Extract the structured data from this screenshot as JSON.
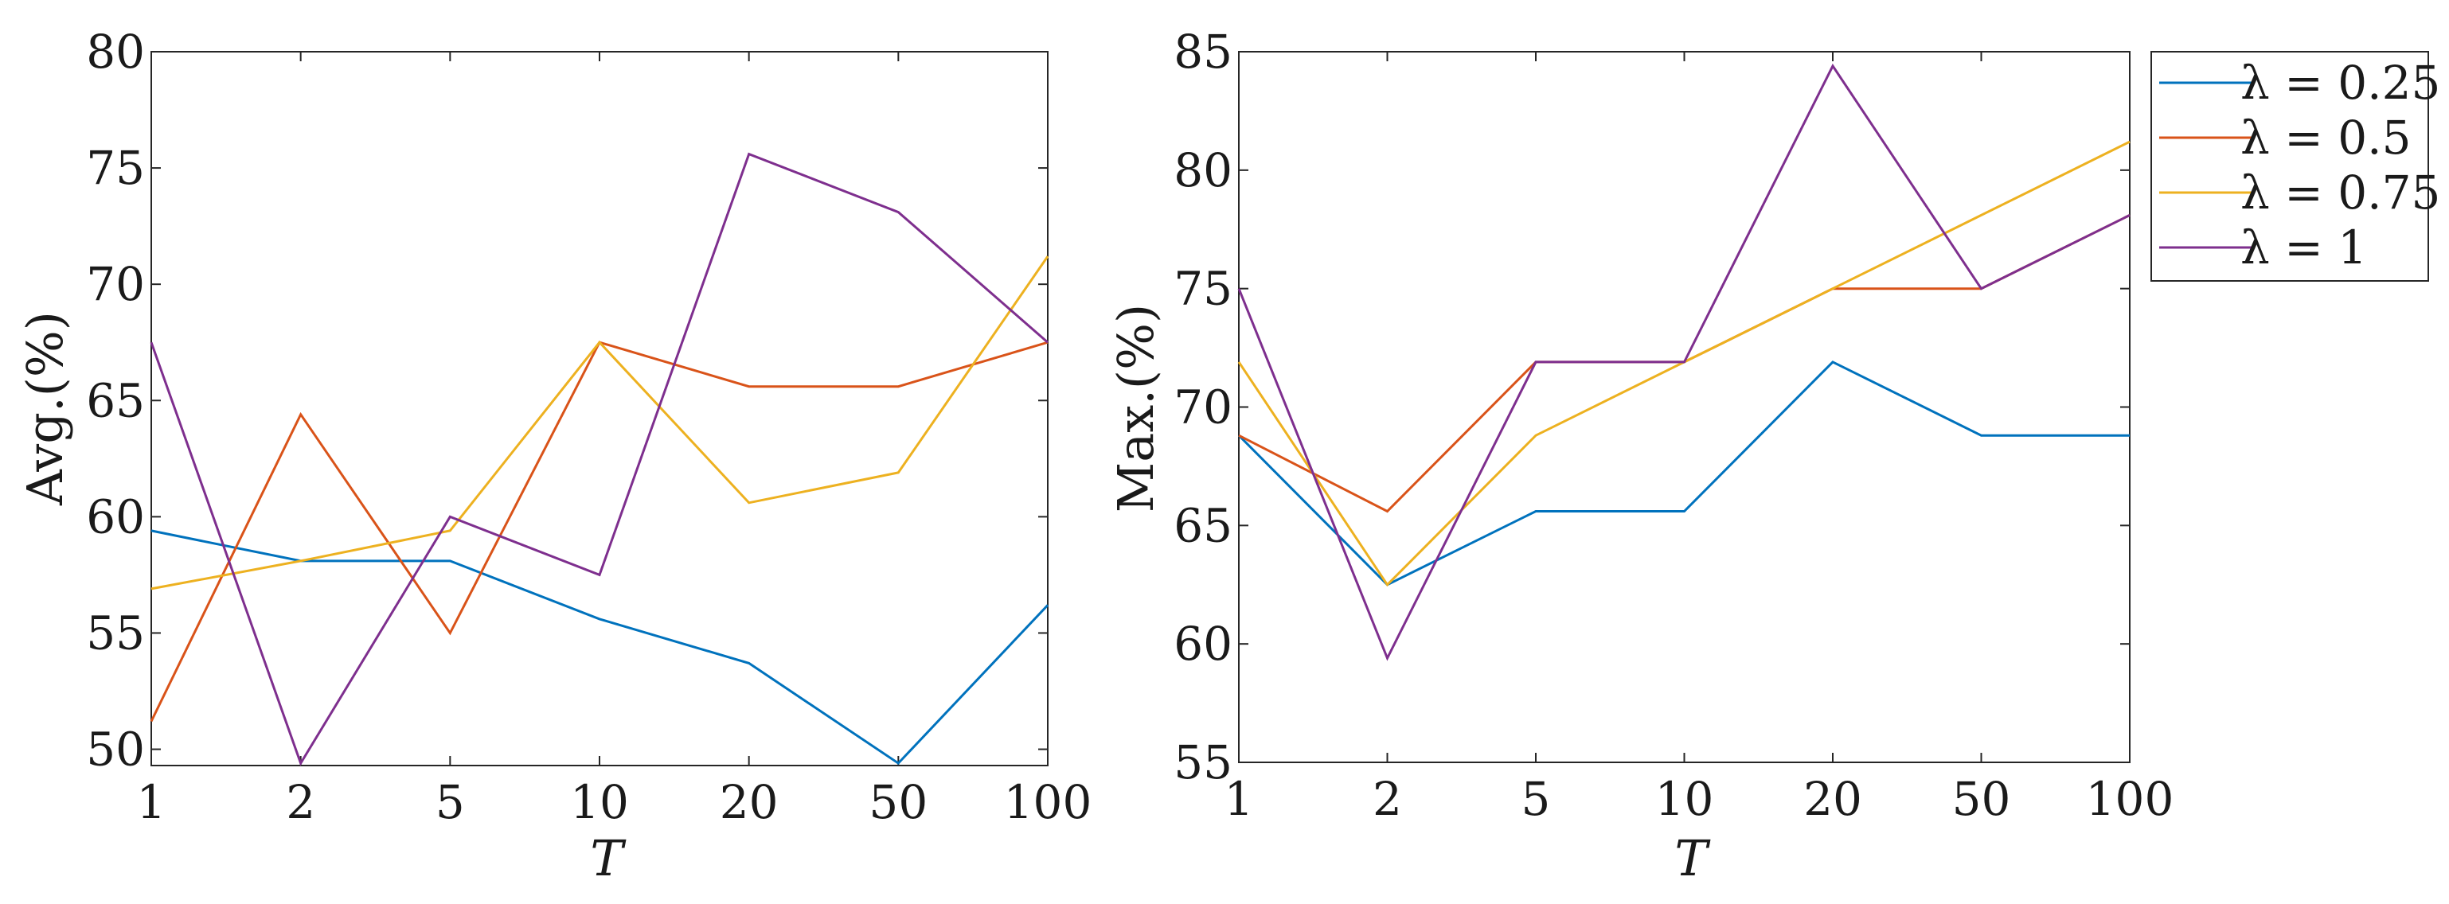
{
  "chart_data": [
    {
      "type": "line",
      "x_scale": "categorical",
      "categories": [
        "1",
        "2",
        "5",
        "10",
        "20",
        "50",
        "100"
      ],
      "xlabel": "T",
      "ylabel": "Avg.(%)",
      "ylim": [
        49.3,
        80
      ],
      "yticks": [
        "50",
        "55",
        "60",
        "65",
        "70",
        "75",
        "80"
      ],
      "ytick_values": [
        50,
        55,
        60,
        65,
        70,
        75,
        80
      ],
      "series": [
        {
          "name": "λ = 0.25",
          "color": "#0072BD",
          "values": [
            59.4,
            58.1,
            58.1,
            55.6,
            53.7,
            49.4,
            56.2
          ]
        },
        {
          "name": "λ = 0.5",
          "color": "#D95319",
          "values": [
            51.2,
            64.4,
            55.0,
            67.5,
            65.6,
            65.6,
            67.5
          ]
        },
        {
          "name": "λ = 0.75",
          "color": "#EDB120",
          "values": [
            56.9,
            58.1,
            59.4,
            67.5,
            60.6,
            61.9,
            71.2
          ]
        },
        {
          "name": "λ = 1",
          "color": "#7E2F8E",
          "values": [
            67.5,
            49.4,
            60.0,
            57.5,
            75.6,
            73.1,
            67.5
          ]
        }
      ]
    },
    {
      "type": "line",
      "x_scale": "categorical",
      "categories": [
        "1",
        "2",
        "5",
        "10",
        "20",
        "50",
        "100"
      ],
      "xlabel": "T",
      "ylabel": "Max.(%)",
      "ylim": [
        55,
        85
      ],
      "yticks": [
        "55",
        "60",
        "65",
        "70",
        "75",
        "80",
        "85"
      ],
      "ytick_values": [
        55,
        60,
        65,
        70,
        75,
        80,
        85
      ],
      "series": [
        {
          "name": "λ = 0.25",
          "color": "#0072BD",
          "values": [
            68.8,
            62.5,
            65.6,
            65.6,
            71.9,
            68.8,
            68.8
          ]
        },
        {
          "name": "λ = 0.5",
          "color": "#D95319",
          "values": [
            68.8,
            65.6,
            71.9,
            71.9,
            75.0,
            75.0,
            78.1
          ]
        },
        {
          "name": "λ = 0.75",
          "color": "#EDB120",
          "values": [
            71.9,
            62.5,
            68.8,
            71.9,
            75.0,
            78.1,
            81.2
          ]
        },
        {
          "name": "λ = 1",
          "color": "#7E2F8E",
          "values": [
            75.0,
            59.4,
            71.9,
            71.9,
            84.4,
            75.0,
            78.1
          ]
        }
      ]
    }
  ],
  "legend": {
    "placement": "right of second panel, top",
    "entries": [
      {
        "label": "λ = 0.25",
        "color": "#0072BD"
      },
      {
        "label": "λ = 0.5",
        "color": "#D95319"
      },
      {
        "label": "λ = 0.75",
        "color": "#EDB120"
      },
      {
        "label": "λ = 1",
        "color": "#7E2F8E"
      }
    ]
  }
}
